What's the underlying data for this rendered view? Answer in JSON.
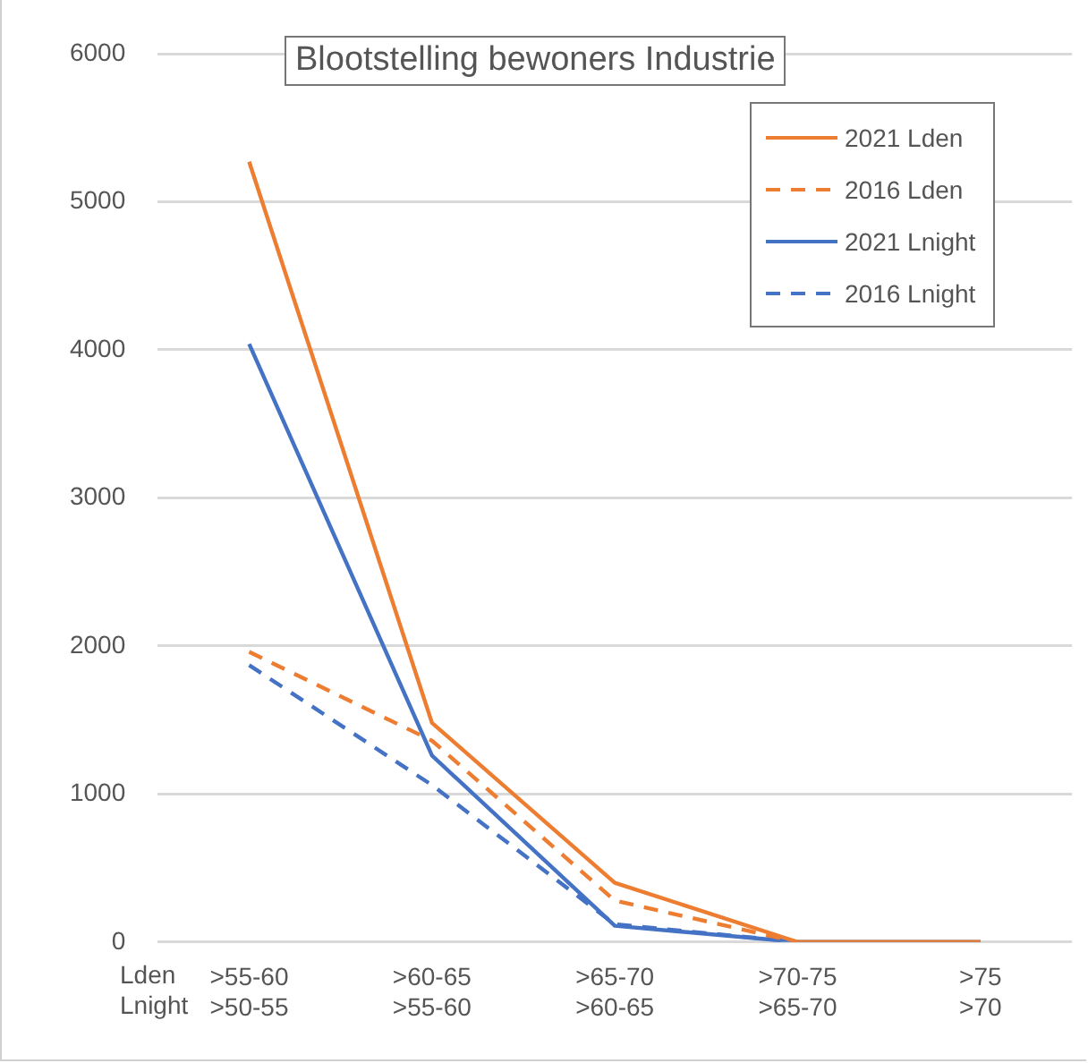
{
  "chart_data": {
    "type": "line",
    "title": "Blootstelling bewoners Industrie",
    "categories": [
      ">55-60\n>50-55",
      ">60-65\n>55-60",
      ">65-70\n>60-65",
      ">70-75\n>65-70",
      ">75\n>70"
    ],
    "series": [
      {
        "name": "2021 Lden",
        "color": "#ed7d31",
        "line_style": "solid",
        "values": [
          5270,
          1480,
          400,
          0,
          0
        ]
      },
      {
        "name": "2016 Lden",
        "color": "#ed7d31",
        "line_style": "dashed",
        "values": [
          1960,
          1360,
          280,
          0,
          null
        ]
      },
      {
        "name": "2021 Lnight",
        "color": "#4472c4",
        "line_style": "solid",
        "values": [
          4040,
          1260,
          110,
          0,
          0
        ]
      },
      {
        "name": "2016 Lnight",
        "color": "#4472c4",
        "line_style": "dashed",
        "values": [
          1870,
          1060,
          120,
          0,
          null
        ]
      }
    ],
    "ylim": [
      0,
      6000
    ],
    "yticks": [
      0,
      1000,
      2000,
      3000,
      4000,
      5000,
      6000
    ],
    "grid": "y",
    "legend": "top right",
    "marker": "none",
    "annotations": [
      "Lden",
      "Lnight"
    ]
  }
}
